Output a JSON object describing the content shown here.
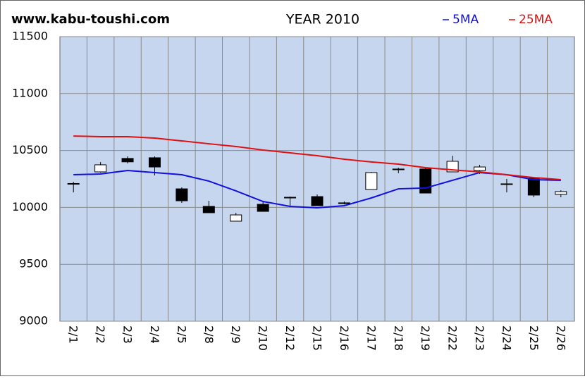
{
  "chart_data": {
    "type": "candlestick",
    "site": "www.kabu-toushi.com",
    "title": "YEAR 2010",
    "categories": [
      "2/1",
      "2/2",
      "2/3",
      "2/4",
      "2/5",
      "2/8",
      "2/9",
      "2/10",
      "2/12",
      "2/15",
      "2/16",
      "2/17",
      "2/18",
      "2/19",
      "2/22",
      "2/23",
      "2/24",
      "2/25",
      "2/26"
    ],
    "open": [
      10205,
      10312,
      10430,
      10436,
      10163,
      10009,
      9879,
      10027,
      10089,
      10095,
      10040,
      10157,
      10337,
      10337,
      10312,
      10324,
      10207,
      10256,
      10114
    ],
    "high": [
      10225,
      10398,
      10448,
      10448,
      10176,
      10058,
      9953,
      10046,
      10095,
      10114,
      10052,
      10312,
      10349,
      10349,
      10454,
      10374,
      10250,
      10268,
      10151
    ],
    "low": [
      10132,
      10305,
      10386,
      10281,
      10040,
      9953,
      9879,
      9965,
      10002,
      10015,
      10027,
      10157,
      10300,
      10126,
      10312,
      10293,
      10132,
      10089,
      10089
    ],
    "close": [
      10210,
      10374,
      10400,
      10355,
      10058,
      9953,
      9934,
      9965,
      10089,
      10015,
      10040,
      10306,
      10337,
      10126,
      10405,
      10355,
      10207,
      10108,
      10139
    ],
    "candle_colors": {
      "up": "#ffffff",
      "down": "#000000"
    },
    "series": [
      {
        "name": "5MA",
        "color": "#1010e0",
        "values": [
          10287,
          10293,
          10324,
          10306,
          10287,
          10231,
          10145,
          10052,
          10009,
          9996,
          10015,
          10083,
          10163,
          10170,
          10238,
          10306,
          10287,
          10244,
          10238
        ]
      },
      {
        "name": "25MA",
        "color": "#e01010",
        "values": [
          10627,
          10621,
          10621,
          10609,
          10584,
          10559,
          10535,
          10504,
          10479,
          10454,
          10423,
          10399,
          10380,
          10349,
          10330,
          10312,
          10287,
          10262,
          10244
        ]
      }
    ],
    "ylim": [
      9000,
      11500
    ],
    "yticks": [
      9000,
      9500,
      10000,
      10500,
      11000,
      11500
    ],
    "grid": true
  }
}
